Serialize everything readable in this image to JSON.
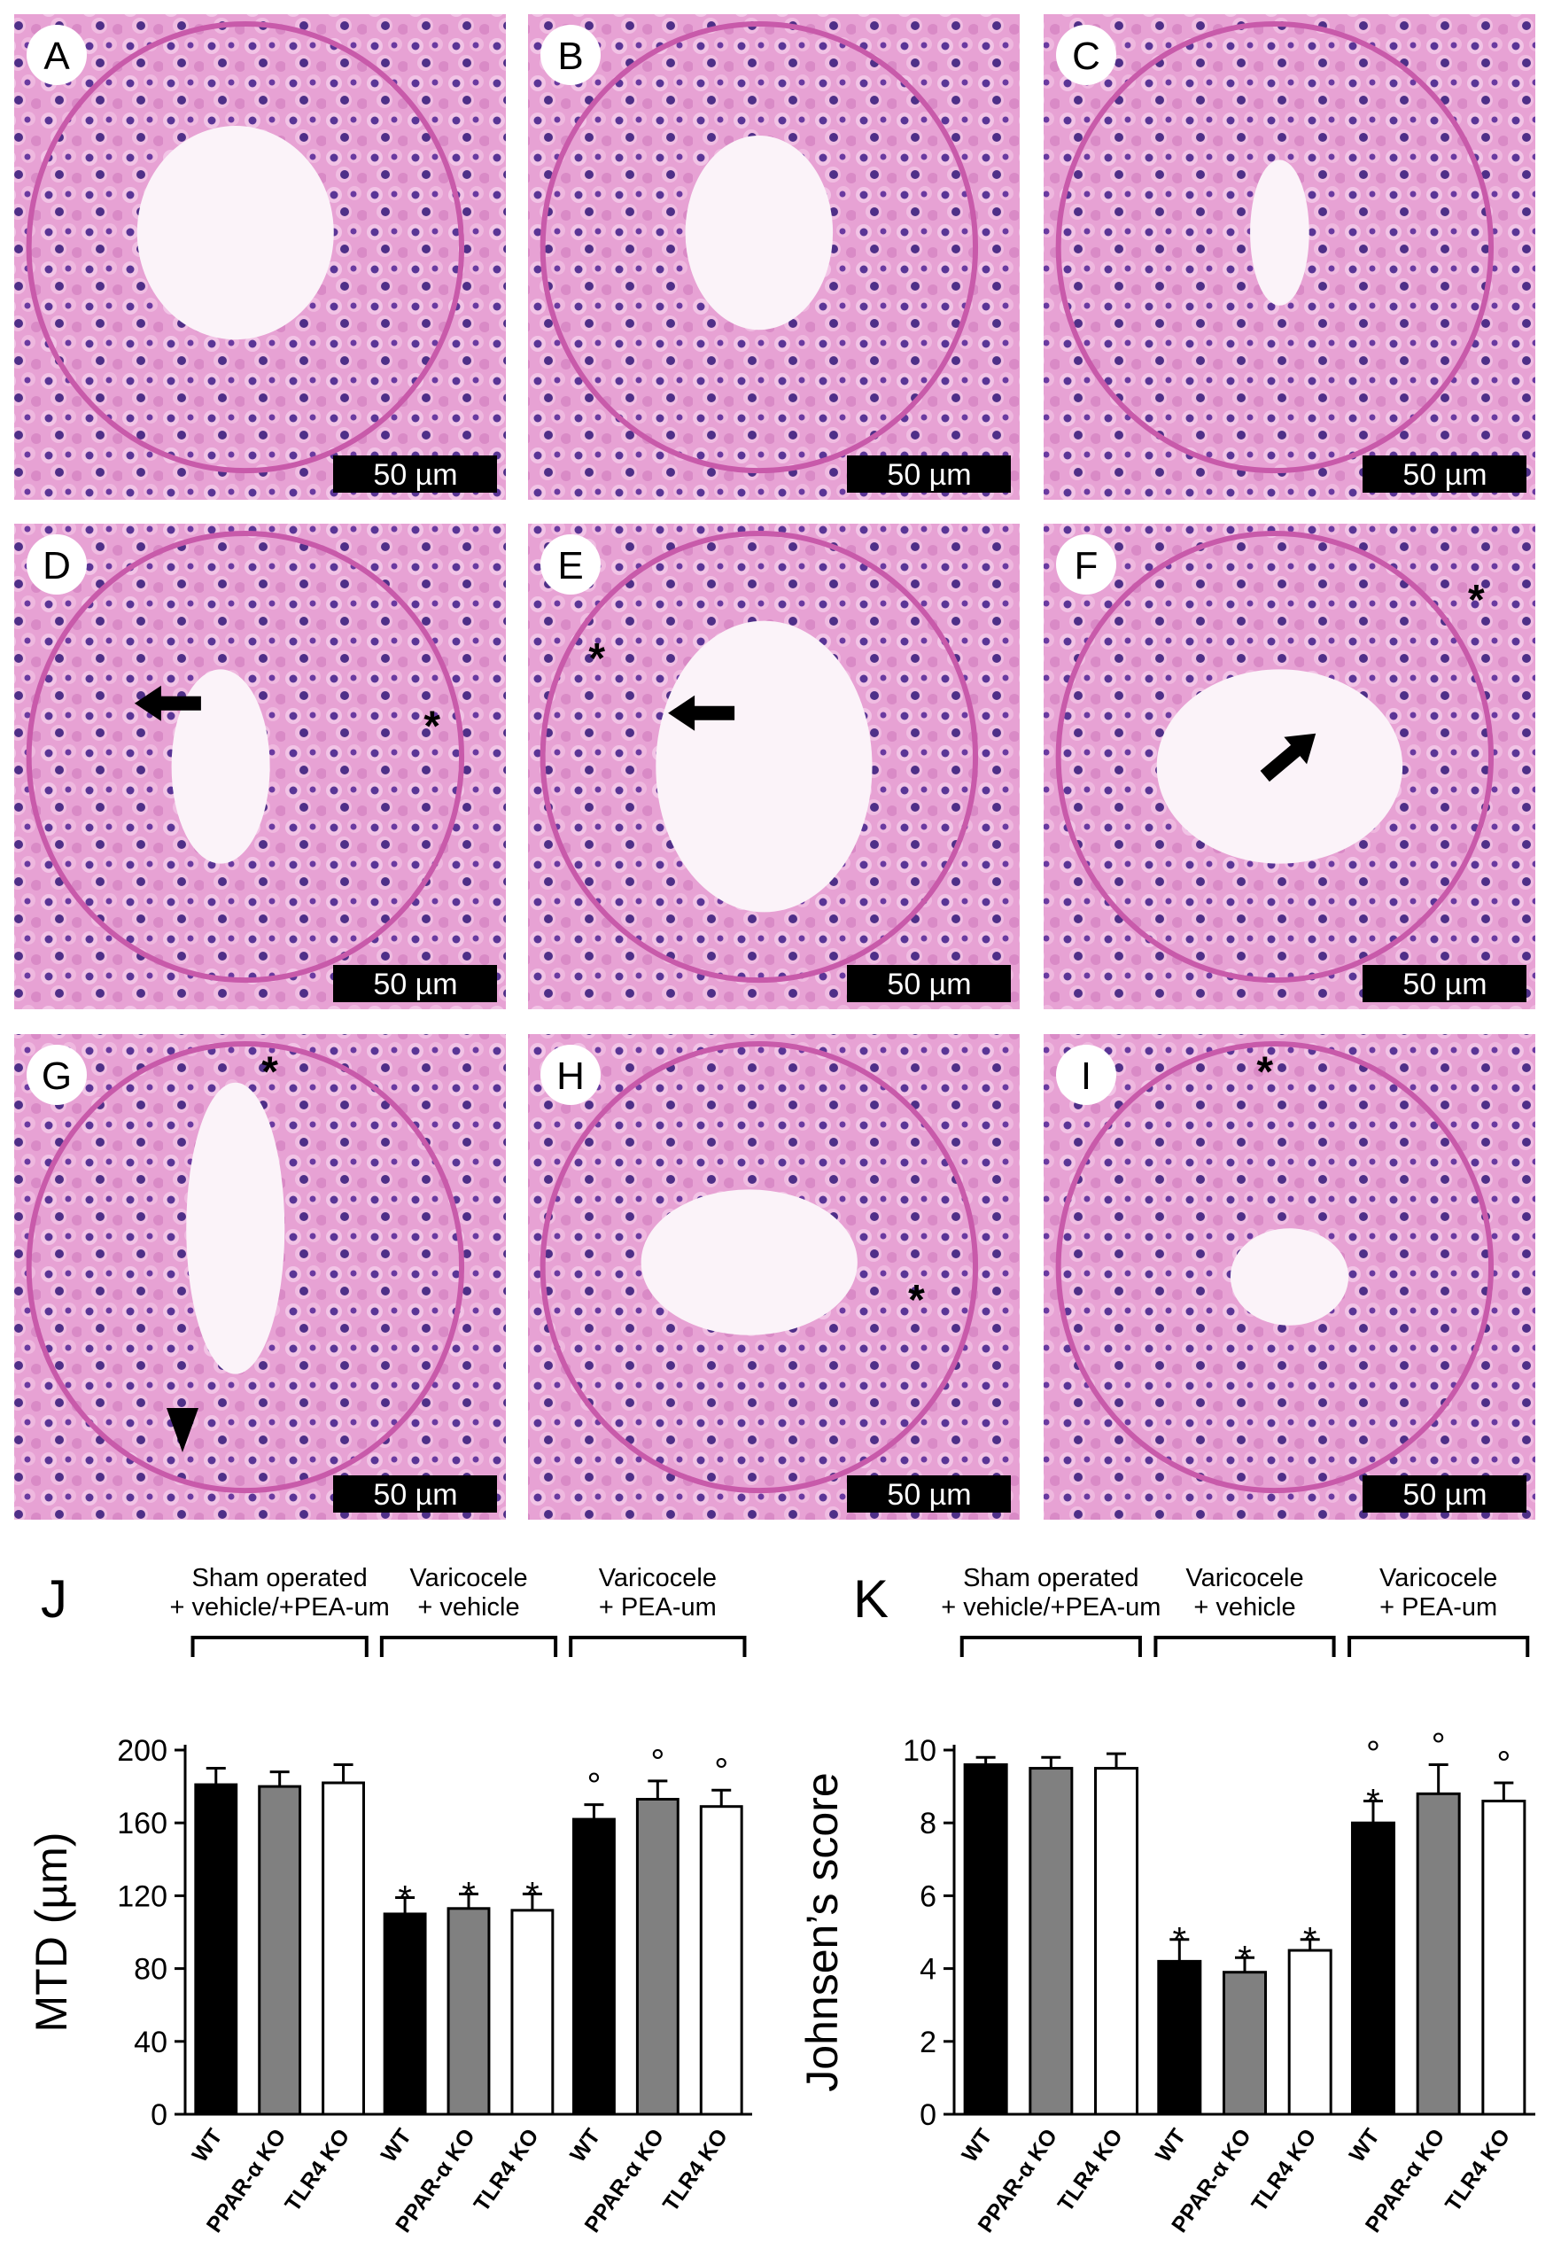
{
  "panels": [
    {
      "label": "A",
      "scale_bar": "50 µm"
    },
    {
      "label": "B",
      "scale_bar": "50 µm"
    },
    {
      "label": "C",
      "scale_bar": "50 µm"
    },
    {
      "label": "D",
      "scale_bar": "50 µm",
      "asterisk": "*"
    },
    {
      "label": "E",
      "scale_bar": "50 µm",
      "asterisk": "*"
    },
    {
      "label": "F",
      "scale_bar": "50 µm",
      "asterisk": "*"
    },
    {
      "label": "G",
      "scale_bar": "50 µm",
      "asterisk": "*"
    },
    {
      "label": "H",
      "scale_bar": "50 µm",
      "asterisk": "*"
    },
    {
      "label": "I",
      "scale_bar": "50 µm",
      "asterisk": "*"
    }
  ],
  "chart_data": [
    {
      "type": "bar",
      "panel_label": "J",
      "y_label": "MTD (µm)",
      "ylim": [
        0,
        200
      ],
      "yticks": [
        0,
        40,
        80,
        120,
        160,
        200
      ],
      "colors": [
        "#000000",
        "#808080",
        "#ffffff"
      ],
      "groups": [
        {
          "label": [
            "Sham operated",
            "+ vehicle/+PEA-um"
          ],
          "categories": [
            "WT",
            "PPAR-α KO",
            "TLR4 KO"
          ],
          "values": [
            181,
            180,
            182
          ],
          "errors": [
            9,
            8,
            10
          ],
          "markers": [
            [],
            [],
            []
          ]
        },
        {
          "label": [
            "Varicocele",
            "+ vehicle"
          ],
          "categories": [
            "WT",
            "PPAR-α KO",
            "TLR4 KO"
          ],
          "values": [
            110,
            113,
            112
          ],
          "errors": [
            9,
            8,
            9
          ],
          "markers": [
            [
              "*"
            ],
            [
              "*"
            ],
            [
              "*"
            ]
          ]
        },
        {
          "label": [
            "Varicocele",
            "+ PEA-um"
          ],
          "categories": [
            "WT",
            "PPAR-α KO",
            "TLR4 KO"
          ],
          "values": [
            162,
            173,
            169
          ],
          "errors": [
            8,
            10,
            9
          ],
          "markers": [
            [
              "°"
            ],
            [
              "°"
            ],
            [
              "°"
            ]
          ]
        }
      ]
    },
    {
      "type": "bar",
      "panel_label": "K",
      "y_label": "Johnsen’s score",
      "ylim": [
        0,
        10
      ],
      "yticks": [
        0,
        2,
        4,
        6,
        8,
        10
      ],
      "colors": [
        "#000000",
        "#808080",
        "#ffffff"
      ],
      "groups": [
        {
          "label": [
            "Sham operated",
            "+ vehicle/+PEA-um"
          ],
          "categories": [
            "WT",
            "PPAR-α KO",
            "TLR4 KO"
          ],
          "values": [
            9.6,
            9.5,
            9.5
          ],
          "errors": [
            0.2,
            0.3,
            0.4
          ],
          "markers": [
            [],
            [],
            []
          ]
        },
        {
          "label": [
            "Varicocele",
            "+ vehicle"
          ],
          "categories": [
            "WT",
            "PPAR-α KO",
            "TLR4 KO"
          ],
          "values": [
            4.2,
            3.9,
            4.5
          ],
          "errors": [
            0.6,
            0.4,
            0.3
          ],
          "markers": [
            [
              "*"
            ],
            [
              "*"
            ],
            [
              "*"
            ]
          ]
        },
        {
          "label": [
            "Varicocele",
            "+ PEA-um"
          ],
          "categories": [
            "WT",
            "PPAR-α KO",
            "TLR4 KO"
          ],
          "values": [
            8.0,
            8.8,
            8.6
          ],
          "errors": [
            0.6,
            0.8,
            0.5
          ],
          "markers": [
            [
              "*",
              "°"
            ],
            [
              "°"
            ],
            [
              "°"
            ]
          ]
        }
      ]
    }
  ]
}
